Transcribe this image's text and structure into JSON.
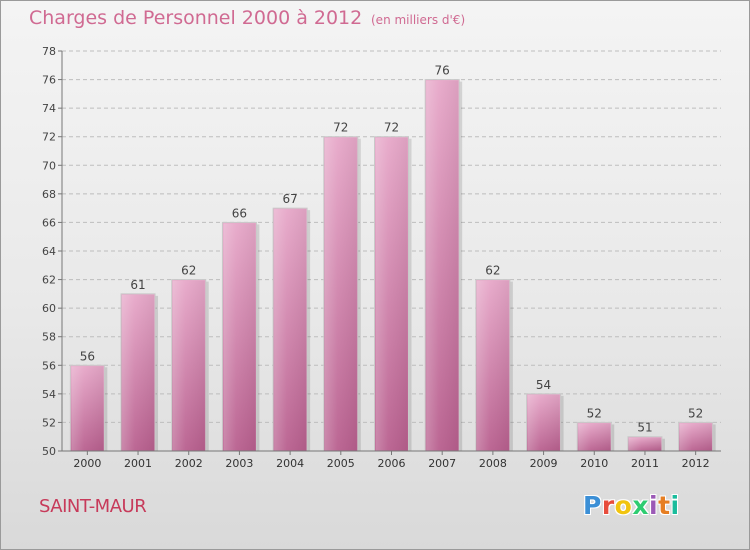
{
  "header": {
    "title": "Charges de Personnel 2000 à 2012",
    "subtitle": "(en milliers d'€)"
  },
  "commune": "SAINT-MAUR",
  "logo": {
    "text": "Proxiti"
  },
  "colors": {
    "bar": "#d07aa8",
    "bar_top": "#e6a9c8",
    "title": "#d06a92",
    "commune": "#c73a5a"
  },
  "chart_data": {
    "type": "bar",
    "title": "Charges de Personnel 2000 à 2012",
    "subtitle": "(en milliers d'€)",
    "categories": [
      "2000",
      "2001",
      "2002",
      "2003",
      "2004",
      "2005",
      "2006",
      "2007",
      "2008",
      "2009",
      "2010",
      "2011",
      "2012"
    ],
    "values": [
      56,
      61,
      62,
      66,
      67,
      72,
      72,
      76,
      62,
      54,
      52,
      51,
      52
    ],
    "ylim": [
      50,
      78
    ],
    "yticks": [
      50,
      52,
      54,
      56,
      58,
      60,
      62,
      64,
      66,
      68,
      70,
      72,
      74,
      76,
      78
    ],
    "grid": "horizontal dashed",
    "legend": "none",
    "data_labels": true
  }
}
